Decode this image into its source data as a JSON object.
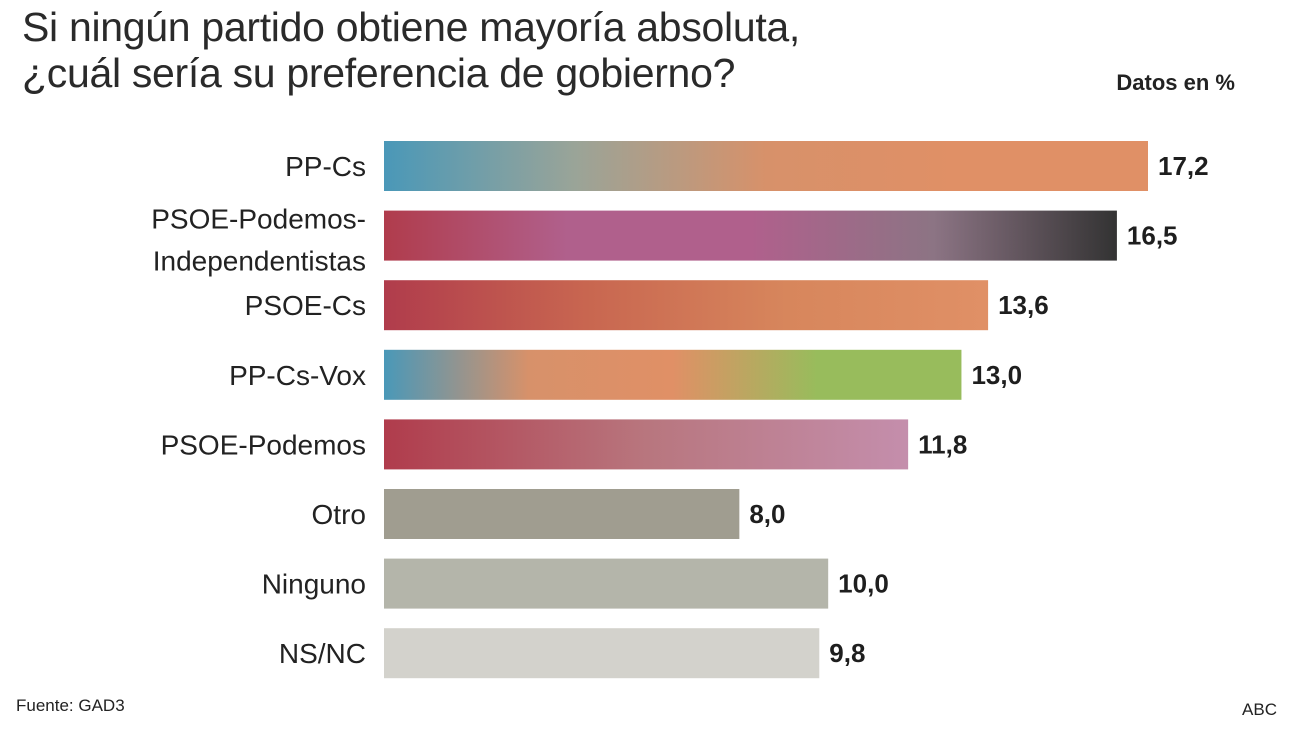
{
  "title": {
    "line1": "Si ningún partido obtiene mayoría absoluta,",
    "line2": "¿cuál sería su preferencia de gobierno?"
  },
  "units_note": "Datos en %",
  "source": "Fuente: GAD3",
  "credit": "ABC",
  "chart_data": {
    "type": "bar",
    "orientation": "horizontal",
    "grid": false,
    "legend": "none",
    "xlim": [
      0,
      17.2
    ],
    "categories": [
      [
        "PP-Cs"
      ],
      [
        "PSOE-Podemos-",
        "Independentistas"
      ],
      [
        "PSOE-Cs"
      ],
      [
        "PP-Cs-Vox"
      ],
      [
        "PSOE-Podemos"
      ],
      [
        "Otro"
      ],
      [
        "Ninguno"
      ],
      [
        "NS/NC"
      ]
    ],
    "values": [
      17.2,
      16.5,
      13.6,
      13.0,
      11.8,
      8.0,
      10.0,
      9.8
    ],
    "value_labels": [
      "17,2",
      "16,5",
      "13,6",
      "13,0",
      "11,8",
      "8,0",
      "10,0",
      "9,8"
    ],
    "bar_colors": [
      [
        "#4a98b8",
        "#9aa498",
        "#d7916a",
        "#e09066",
        "#e09066"
      ],
      [
        "#b03c4c",
        "#b0608c",
        "#b0608c",
        "#8c7484",
        "#333333"
      ],
      [
        "#b03c4c",
        "#c86650",
        "#d7865c",
        "#e09066"
      ],
      [
        "#4a98b8",
        "#d7916a",
        "#e09066",
        "#98bc5c",
        "#98bc5c"
      ],
      [
        "#b03c4c",
        "#b8767e",
        "#c48eac"
      ],
      [
        "#a09d90"
      ],
      [
        "#b4b5aa"
      ],
      [
        "#d3d2cc"
      ]
    ]
  }
}
